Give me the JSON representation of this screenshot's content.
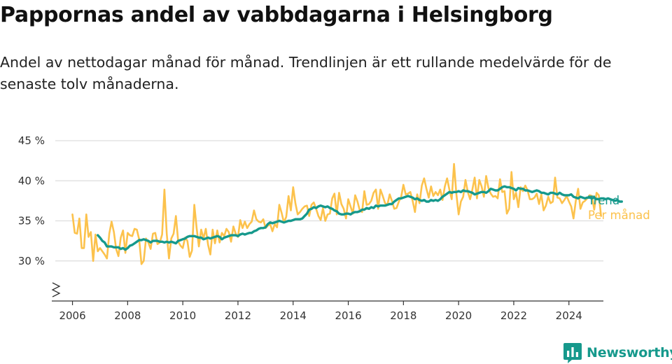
{
  "header": {
    "title": "Pappornas andel av vabbdagarna i Helsingborg",
    "subtitle": "Andel av nettodagar månad för månad. Trendlinjen är ett rullande medelvärde för de senaste tolv månaderna."
  },
  "brand": {
    "name": "Newsworthy",
    "icon": "bar-chart-speech-bubble-icon"
  },
  "chart_data": {
    "type": "line",
    "title": "Pappornas andel av vabbdagarna i Helsingborg",
    "subtitle": "Andel av nettodagar månad för månad. Trendlinjen är ett rullande medelvärde för de senaste tolv månaderna.",
    "xlabel": "",
    "ylabel": "",
    "xlim": [
      2005.25,
      2025.25
    ],
    "ylim": [
      25,
      45
    ],
    "y_ticks": [
      30,
      35,
      40,
      45
    ],
    "y_tick_labels": [
      "30 %",
      "35 %",
      "40 %",
      "45 %"
    ],
    "x_ticks": [
      2006,
      2008,
      2010,
      2012,
      2014,
      2016,
      2018,
      2020,
      2022,
      2024
    ],
    "x_tick_labels": [
      "2006",
      "2008",
      "2010",
      "2012",
      "2014",
      "2016",
      "2018",
      "2020",
      "2022",
      "2024"
    ],
    "grid": "horizontal",
    "axis_break": true,
    "legend": "right-end-labels",
    "colors": {
      "per_month": "#fcc24c",
      "trend": "#16998c",
      "grid": "#dddddd",
      "axis": "#333333"
    },
    "series": [
      {
        "name": "Per månad",
        "start": "2006-01",
        "frequency": "monthly",
        "values": [
          35.8,
          33.5,
          33.4,
          35.3,
          31.6,
          31.6,
          35.8,
          33.0,
          33.6,
          30.0,
          33.3,
          31.2,
          31.6,
          31.2,
          30.8,
          30.3,
          33.4,
          34.9,
          33.6,
          31.5,
          30.6,
          32.9,
          33.8,
          31.0,
          33.5,
          33.2,
          33.1,
          34.0,
          33.9,
          32.7,
          29.6,
          30.0,
          32.8,
          32.3,
          31.5,
          33.4,
          33.5,
          32.1,
          32.3,
          33.3,
          38.9,
          33.4,
          30.3,
          32.8,
          33.4,
          35.6,
          32.4,
          31.9,
          31.6,
          32.9,
          32.5,
          30.5,
          31.3,
          37.0,
          34.1,
          31.8,
          33.9,
          32.8,
          34.0,
          32.0,
          30.8,
          33.9,
          32.2,
          33.8,
          32.3,
          33.5,
          33.1,
          34.0,
          33.6,
          32.4,
          34.3,
          33.4,
          33.0,
          35.1,
          34.1,
          34.9,
          34.1,
          34.6,
          34.9,
          36.3,
          35.2,
          34.9,
          34.8,
          35.2,
          34.1,
          34.4,
          34.6,
          33.7,
          34.6,
          34.2,
          37.0,
          36.0,
          34.8,
          35.5,
          38.1,
          36.3,
          39.2,
          37.2,
          35.8,
          36.1,
          36.5,
          36.8,
          36.9,
          35.6,
          37.0,
          37.3,
          36.5,
          35.6,
          35.1,
          36.6,
          35.0,
          35.8,
          35.9,
          37.8,
          38.4,
          35.8,
          38.5,
          37.1,
          36.5,
          35.3,
          37.7,
          36.8,
          35.9,
          38.2,
          37.4,
          36.3,
          36.1,
          38.7,
          37.0,
          37.1,
          37.5,
          38.5,
          38.9,
          36.5,
          38.9,
          38.1,
          37.2,
          37.0,
          38.3,
          37.5,
          36.5,
          36.6,
          37.4,
          38.0,
          39.5,
          38.3,
          38.4,
          38.6,
          37.5,
          36.1,
          38.3,
          37.2,
          39.4,
          40.3,
          39.0,
          37.9,
          39.3,
          38.1,
          38.6,
          38.2,
          38.9,
          37.6,
          39.3,
          40.3,
          38.9,
          37.7,
          42.1,
          38.4,
          35.8,
          37.4,
          38.0,
          40.1,
          38.6,
          37.7,
          38.9,
          40.4,
          37.8,
          40.1,
          39.3,
          38.0,
          40.6,
          39.1,
          38.4,
          38.0,
          38.1,
          37.8,
          40.2,
          38.6,
          38.7,
          35.9,
          36.5,
          41.1,
          37.7,
          38.5,
          36.7,
          39.2,
          38.7,
          39.4,
          38.8,
          37.7,
          37.7,
          37.9,
          38.4,
          37.1,
          38.3,
          36.3,
          36.9,
          38.0,
          37.2,
          37.4,
          40.4,
          37.9,
          37.8,
          37.2,
          37.6,
          38.1,
          37.4,
          36.8,
          35.3,
          37.5,
          39.0,
          36.5,
          37.3,
          37.5,
          37.8,
          38.2,
          38.1,
          36.4,
          38.5,
          38.2,
          35.6
        ]
      },
      {
        "name": "Trend",
        "start": "2006-12",
        "frequency": "monthly",
        "values": [
          33.2,
          32.9,
          32.5,
          32.3,
          31.8,
          31.8,
          31.8,
          31.7,
          31.7,
          31.7,
          31.5,
          31.6,
          31.4,
          31.6,
          31.9,
          32.0,
          32.2,
          32.4,
          32.6,
          32.6,
          32.7,
          32.6,
          32.5,
          32.3,
          32.5,
          32.5,
          32.5,
          32.4,
          32.4,
          32.3,
          32.4,
          32.3,
          32.4,
          32.3,
          32.2,
          32.5,
          32.6,
          32.7,
          32.8,
          33.0,
          33.1,
          33.1,
          33.1,
          33.0,
          32.9,
          32.9,
          32.7,
          32.8,
          32.9,
          32.8,
          32.9,
          33.0,
          33.1,
          33.0,
          32.7,
          32.9,
          33.0,
          33.1,
          33.2,
          33.2,
          33.2,
          33.1,
          33.3,
          33.4,
          33.3,
          33.4,
          33.5,
          33.5,
          33.7,
          33.8,
          34.0,
          34.1,
          34.1,
          34.2,
          34.6,
          34.8,
          34.7,
          34.8,
          34.9,
          35.0,
          34.9,
          34.8,
          34.9,
          35.0,
          35.0,
          35.1,
          35.2,
          35.2,
          35.2,
          35.3,
          35.6,
          35.9,
          36.4,
          36.5,
          36.7,
          36.6,
          36.8,
          36.9,
          36.8,
          36.7,
          36.8,
          36.6,
          36.5,
          36.3,
          36.2,
          35.9,
          35.8,
          35.8,
          35.9,
          35.9,
          35.8,
          36.0,
          36.1,
          36.1,
          36.2,
          36.4,
          36.4,
          36.6,
          36.5,
          36.7,
          36.6,
          36.9,
          36.8,
          36.9,
          36.9,
          36.9,
          37.0,
          37.1,
          37.1,
          37.4,
          37.6,
          37.8,
          37.8,
          37.9,
          38.0,
          38.1,
          38.0,
          37.9,
          37.7,
          37.8,
          37.6,
          37.5,
          37.6,
          37.4,
          37.4,
          37.6,
          37.5,
          37.6,
          37.5,
          37.7,
          38.0,
          38.2,
          38.4,
          38.6,
          38.5,
          38.6,
          38.6,
          38.7,
          38.6,
          38.8,
          38.7,
          38.7,
          38.6,
          38.5,
          38.3,
          38.4,
          38.5,
          38.6,
          38.6,
          38.5,
          38.7,
          39.0,
          38.9,
          38.8,
          38.8,
          39.0,
          39.2,
          39.3,
          39.2,
          39.2,
          39.1,
          39.0,
          38.8,
          39.1,
          39.0,
          39.0,
          38.8,
          38.8,
          38.7,
          38.6,
          38.7,
          38.8,
          38.7,
          38.5,
          38.5,
          38.4,
          38.3,
          38.5,
          38.5,
          38.4,
          38.3,
          38.5,
          38.3,
          38.2,
          38.2,
          38.2,
          38.3,
          38.0,
          37.9,
          37.8,
          38.0,
          37.9,
          37.8,
          37.9,
          37.9,
          37.8,
          37.9,
          37.7,
          37.7,
          37.8,
          37.8,
          37.7,
          37.8,
          37.7,
          37.6,
          37.5,
          37.6,
          37.4,
          37.4
        ]
      }
    ]
  }
}
